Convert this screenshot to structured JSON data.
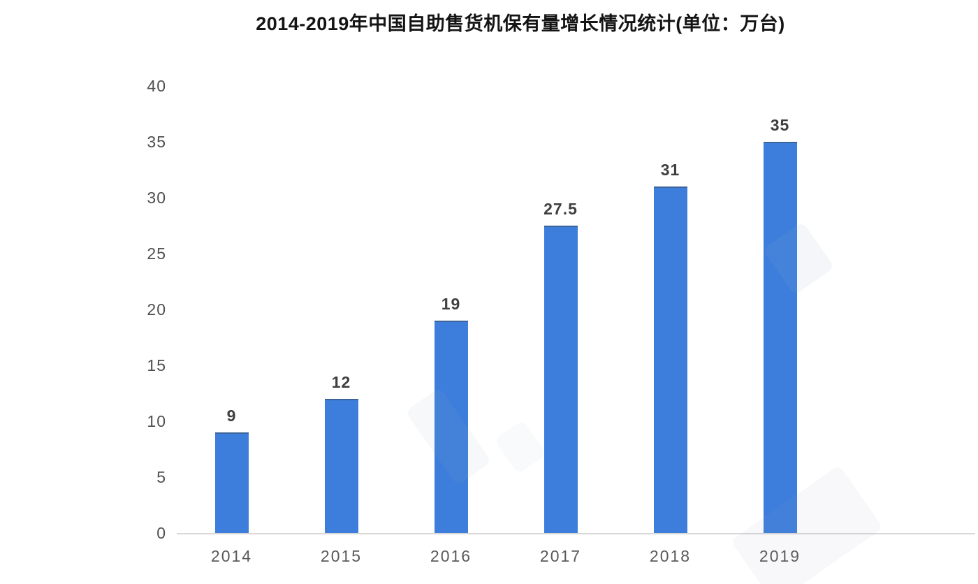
{
  "chart_data": {
    "type": "bar",
    "title": "2014-2019年中国自助售货机保有量增长情况统计(单位：万台)",
    "categories": [
      "2014",
      "2015",
      "2016",
      "2017",
      "2018",
      "2019"
    ],
    "values": [
      9,
      12,
      19,
      27.5,
      31,
      35
    ],
    "value_labels": [
      "9",
      "12",
      "19",
      "27.5",
      "31",
      "35"
    ],
    "yticks": [
      0,
      5,
      10,
      15,
      20,
      25,
      30,
      35,
      40
    ],
    "ylim": [
      0,
      40
    ],
    "xlabel": "",
    "ylabel": "",
    "grid": "off",
    "legend": "none",
    "bar_color": "#3d7edc",
    "baseline_color": "#d8d8d8",
    "background_color": "#ffffff"
  }
}
